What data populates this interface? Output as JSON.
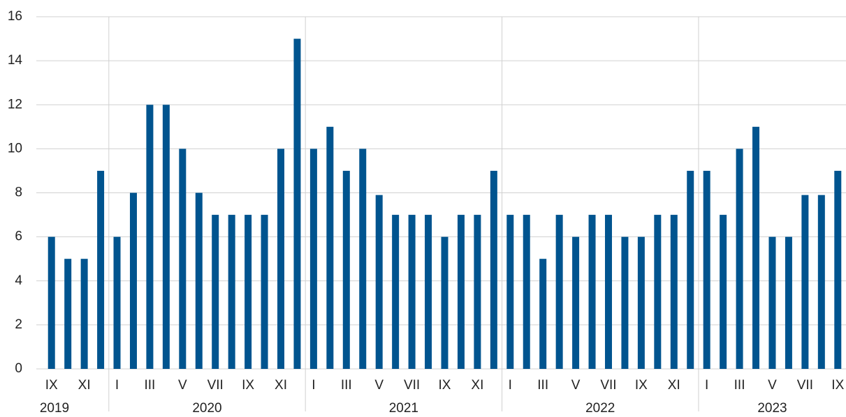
{
  "chart_data": {
    "type": "bar",
    "categories": [
      "IX",
      null,
      "XI",
      null,
      "I",
      null,
      "III",
      null,
      "V",
      null,
      "VII",
      null,
      "IX",
      null,
      "XI",
      null,
      "I",
      null,
      "III",
      null,
      "V",
      null,
      "VII",
      null,
      "IX",
      null,
      "XI",
      null,
      "I",
      null,
      "III",
      null,
      "V",
      null,
      "VII",
      null,
      "IX",
      null,
      "XI",
      null,
      "I",
      null,
      "III",
      null,
      "V",
      null,
      "VII",
      null,
      "IX"
    ],
    "x_groups": [
      "2019",
      "2020",
      "2021",
      "2022",
      "2023"
    ],
    "values": [
      6,
      5,
      5,
      9,
      6,
      8,
      12,
      12,
      10,
      8,
      7,
      7,
      7,
      7,
      10,
      15,
      10,
      11,
      9,
      10,
      7.9,
      7,
      7,
      7,
      6,
      7,
      7,
      9,
      7,
      7,
      5,
      7,
      6,
      7,
      7,
      6,
      6,
      7,
      7,
      9,
      9,
      7,
      10,
      11,
      6,
      6,
      7.9,
      7.9,
      9
    ],
    "color": "#00548f",
    "ylim": [
      0,
      16
    ],
    "yticks": [
      0,
      2,
      4,
      6,
      8,
      10,
      12,
      14,
      16
    ],
    "grid": true
  }
}
